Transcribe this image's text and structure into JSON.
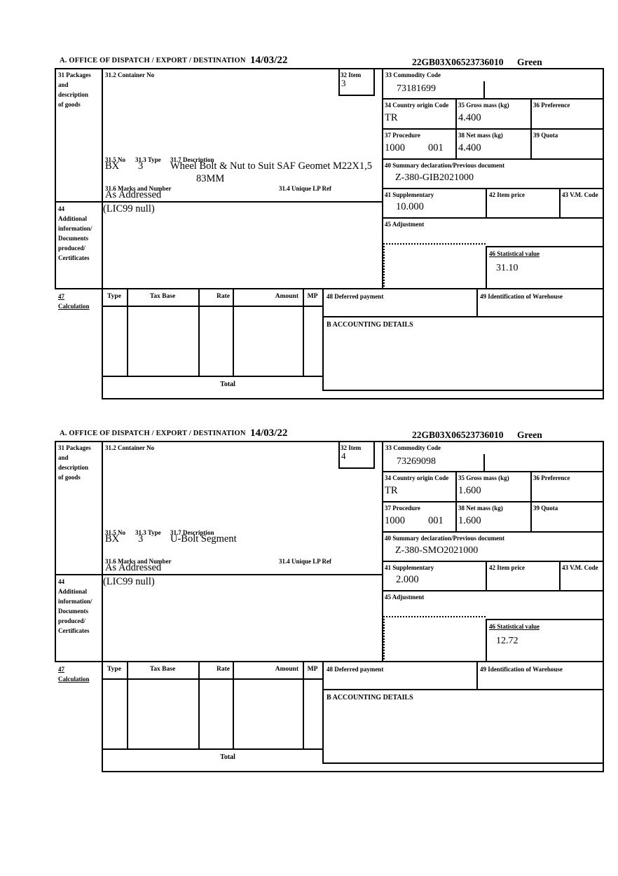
{
  "header": {
    "title": "A.  OFFICE OF DISPATCH / EXPORT / DESTINATION",
    "date": "14/03/22",
    "entry_no": "22GB03X06523736010",
    "route": "Green"
  },
  "labels": {
    "box31": "31 Packages\nand\ndescription\nof goods",
    "container_no": "31.2 Container No",
    "item": "32 Item",
    "no": "31.5 No",
    "type": "31.3 Type",
    "description": "31.7 Description",
    "marks": "31.6 Marks and Number",
    "lp_ref": "31.4 Unique LP Ref",
    "box44": "44\nAdditional\ninformation/\nDocuments\nproduced/\nCertificates",
    "commodity": "33 Commodity Code",
    "country": "34 Country origin Code",
    "gross_mass": "35 Gross mass (kg)",
    "preference": "36 Preference",
    "procedure": "37 Procedure",
    "net_mass": "38 Net mass (kg)",
    "quota": "39 Quota",
    "summary": "40 Summary declaration/Previous document",
    "supplementary": "41 Supplementary",
    "item_price": "42 Item price",
    "vm_code": "43 V.M. Code",
    "adjustment": "45 Adjustment",
    "statistical": "46 Statistical value",
    "box47": "47\nCalculation",
    "col_type": "Type",
    "col_tax_base": "Tax Base",
    "col_rate": "Rate",
    "col_amount": "Amount",
    "col_mp": "MP",
    "total": "Total",
    "deferred": "48 Deferred payment",
    "warehouse": "49 Identification of Warehouse",
    "accounting": "B ACCOUNTING DETAILS"
  },
  "items": [
    {
      "item_no": "3",
      "commodity_code": "73181699",
      "country_origin": "TR",
      "gross_mass": "4.400",
      "procedure_1": "1000",
      "procedure_2": "001",
      "net_mass": "4.400",
      "summary_declaration": "Z-380-GIB2021000",
      "supplementary": "10.000",
      "statistical_value": "31.10",
      "package_count": "BX",
      "package_type": "3",
      "description_line1": "Wheel Bolt & Nut to Suit SAF Geomet M22X1,5",
      "description_line2": "83MM",
      "marks": "As Addressed",
      "additional_info": "(LIC99 null)"
    },
    {
      "item_no": "4",
      "commodity_code": "73269098",
      "country_origin": "TR",
      "gross_mass": "1.600",
      "procedure_1": "1000",
      "procedure_2": "001",
      "net_mass": "1.600",
      "summary_declaration": "Z-380-SMO2021000",
      "supplementary": "2.000",
      "statistical_value": "12.72",
      "package_count": "BX",
      "package_type": "3",
      "description_line1": "U-Bolt Segment",
      "description_line2": "",
      "marks": "As Addressed",
      "additional_info": "(LIC99 null)"
    }
  ]
}
